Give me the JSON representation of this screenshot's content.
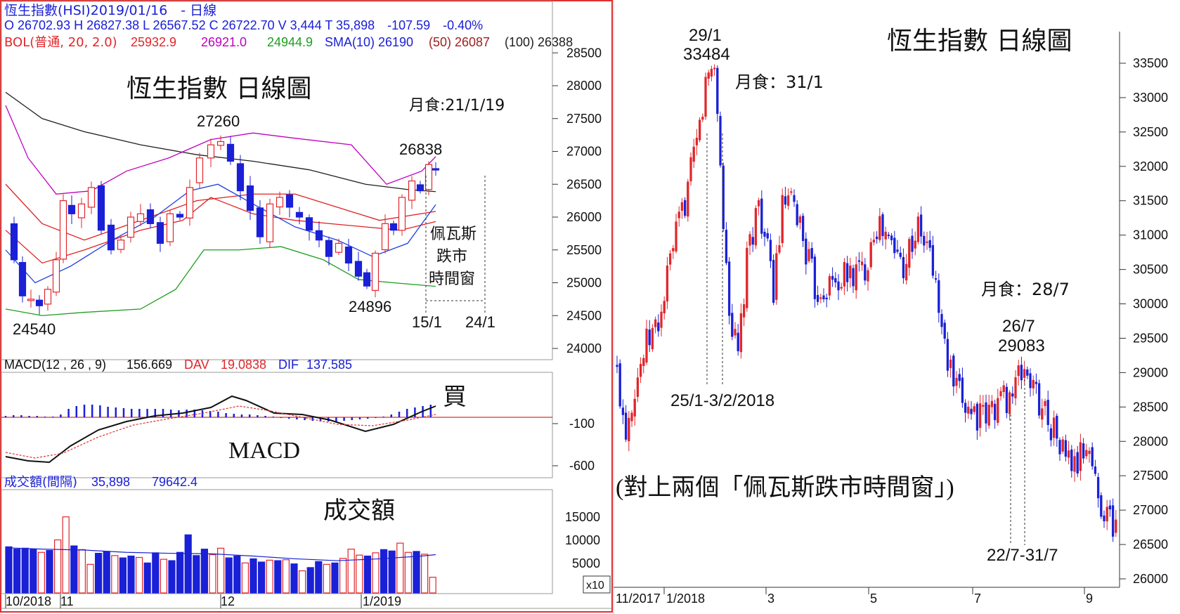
{
  "left_panel": {
    "header": {
      "title_line": "恆生指數(HSI)2019/01/16　- 日線",
      "ohlc_line": "O 26702.93 H 26827.38 L 26567.52 C 26722.70 V 3,444 T 35,898　-107.59　-0.40%",
      "bol_label": "BOL(普通, 20, 2.0)",
      "bol_mid": "25932.9",
      "bol_upper": "26921.0",
      "bol_lower": "24944.9",
      "sma_label": "SMA(10) 26190",
      "sma50_label": "(50) 26087",
      "sma100_label": "(100) 26388"
    },
    "main_title": "恆生指數 日線圖",
    "annotations": {
      "eclipse": "月食:21/1/19",
      "high_1": "27260",
      "high_2": "26838",
      "low_1": "24540",
      "low_2": "24896",
      "window_text_1": "佩瓦斯",
      "window_text_2": "跌市",
      "window_text_3": "時間窗",
      "date_1": "15/1",
      "date_2": "24/1"
    },
    "price_axis": [
      "28500",
      "28000",
      "27500",
      "27000",
      "26500",
      "26000",
      "25500",
      "25000",
      "24500",
      "24000"
    ],
    "macd": {
      "header_label": "MACD(12 , 26 , 9)",
      "header_value": "156.669",
      "dav_label": "DAV",
      "dav_value": "19.0838",
      "dif_label": "DIF",
      "dif_value": "137.585",
      "title": "MACD",
      "buy_label": "買",
      "axis": [
        "-100",
        "-600"
      ]
    },
    "volume": {
      "header_label": "成交額(間隔)",
      "header_v1": "35,898",
      "header_v2": "79642.4",
      "title": "成交額",
      "axis": [
        "15000",
        "10000",
        "5000"
      ],
      "multiplier": "x10"
    },
    "date_axis": [
      "10/2018",
      "11",
      "12",
      "1/2019"
    ]
  },
  "right_panel": {
    "title": "恆生指數 日線圖",
    "annotations": {
      "peak_date": "29/1",
      "peak_value": "33484",
      "eclipse_1": "月食：31/1",
      "window_1": "25/1-3/2/2018",
      "eclipse_2": "月食：28/7",
      "peak2_date": "26/7",
      "peak2_value": "29083",
      "window_2": "22/7-31/7",
      "note": "(對上兩個「佩瓦斯跌市時間窗」)"
    },
    "price_axis": [
      "33500",
      "33000",
      "32500",
      "32000",
      "31500",
      "31000",
      "30500",
      "30000",
      "29500",
      "29000",
      "28500",
      "28000",
      "27500",
      "27000",
      "26500",
      "26000"
    ],
    "date_axis": [
      "11/2017",
      "1/2018",
      "3",
      "5",
      "7",
      "9"
    ]
  },
  "colors": {
    "up": "#e0262b",
    "down": "#1a20d6",
    "bol_upper": "#c000c0",
    "bol_lower": "#1e9e1e",
    "bol_mid": "#e02020",
    "sma10": "#2040e0",
    "sma100": "#202020",
    "frame_left": "#e03030"
  },
  "chart_data": [
    {
      "type": "candlestick",
      "title": "恆生指數 日線圖",
      "ylim": [
        24000,
        28500
      ],
      "points": [
        {
          "label": "24540",
          "y": 24540
        },
        {
          "label": "27260",
          "y": 27260
        },
        {
          "label": "24896",
          "y": 24896
        },
        {
          "label": "26838",
          "y": 26838
        }
      ],
      "indicators": {
        "bol_mid": 25932.9,
        "bol_upper": 26921.0,
        "bol_lower": 24944.9,
        "sma10": 26190,
        "sma50": 26087,
        "sma100": 26388
      },
      "macd": {
        "macd": 156.669,
        "dav": 19.0838,
        "dif": 137.585
      },
      "volume_total": 35898,
      "x_ticks": [
        "10/2018",
        "11",
        "12",
        "1/2019"
      ]
    },
    {
      "type": "candlestick",
      "title": "恆生指數 日線圖",
      "ylim": [
        26000,
        33500
      ],
      "points": [
        {
          "label": "29/1",
          "y": 33484
        },
        {
          "label": "26/7",
          "y": 29083
        }
      ],
      "x_ticks": [
        "11/2017",
        "1/2018",
        "3",
        "5",
        "7",
        "9"
      ]
    }
  ]
}
